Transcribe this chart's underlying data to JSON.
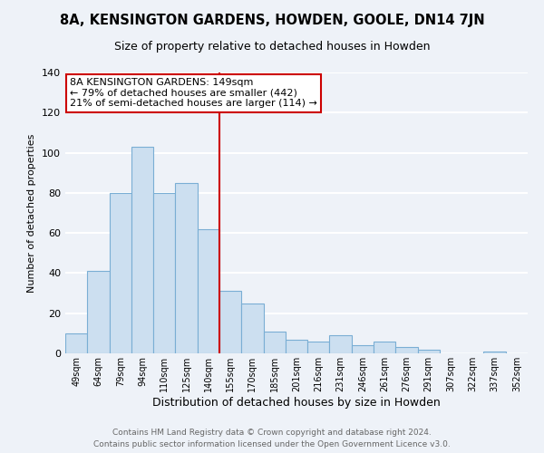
{
  "title": "8A, KENSINGTON GARDENS, HOWDEN, GOOLE, DN14 7JN",
  "subtitle": "Size of property relative to detached houses in Howden",
  "xlabel": "Distribution of detached houses by size in Howden",
  "ylabel": "Number of detached properties",
  "bar_labels": [
    "49sqm",
    "64sqm",
    "79sqm",
    "94sqm",
    "110sqm",
    "125sqm",
    "140sqm",
    "155sqm",
    "170sqm",
    "185sqm",
    "201sqm",
    "216sqm",
    "231sqm",
    "246sqm",
    "261sqm",
    "276sqm",
    "291sqm",
    "307sqm",
    "322sqm",
    "337sqm",
    "352sqm"
  ],
  "bar_heights": [
    10,
    41,
    80,
    103,
    80,
    85,
    62,
    31,
    25,
    11,
    7,
    6,
    9,
    4,
    6,
    3,
    2,
    0,
    0,
    1,
    0
  ],
  "bar_color": "#ccdff0",
  "bar_edge_color": "#7aaed4",
  "vline_color": "#cc0000",
  "ylim": [
    0,
    140
  ],
  "yticks": [
    0,
    20,
    40,
    60,
    80,
    100,
    120,
    140
  ],
  "annotation_title": "8A KENSINGTON GARDENS: 149sqm",
  "annotation_line1": "← 79% of detached houses are smaller (442)",
  "annotation_line2": "21% of semi-detached houses are larger (114) →",
  "annotation_box_color": "#ffffff",
  "annotation_box_edge_color": "#cc0000",
  "footer_line1": "Contains HM Land Registry data © Crown copyright and database right 2024.",
  "footer_line2": "Contains public sector information licensed under the Open Government Licence v3.0.",
  "background_color": "#eef2f8",
  "grid_color": "#ffffff",
  "title_fontsize": 10.5,
  "subtitle_fontsize": 9,
  "xlabel_fontsize": 9,
  "ylabel_fontsize": 8,
  "footer_fontsize": 6.5,
  "tick_fontsize": 7,
  "ytick_fontsize": 8
}
